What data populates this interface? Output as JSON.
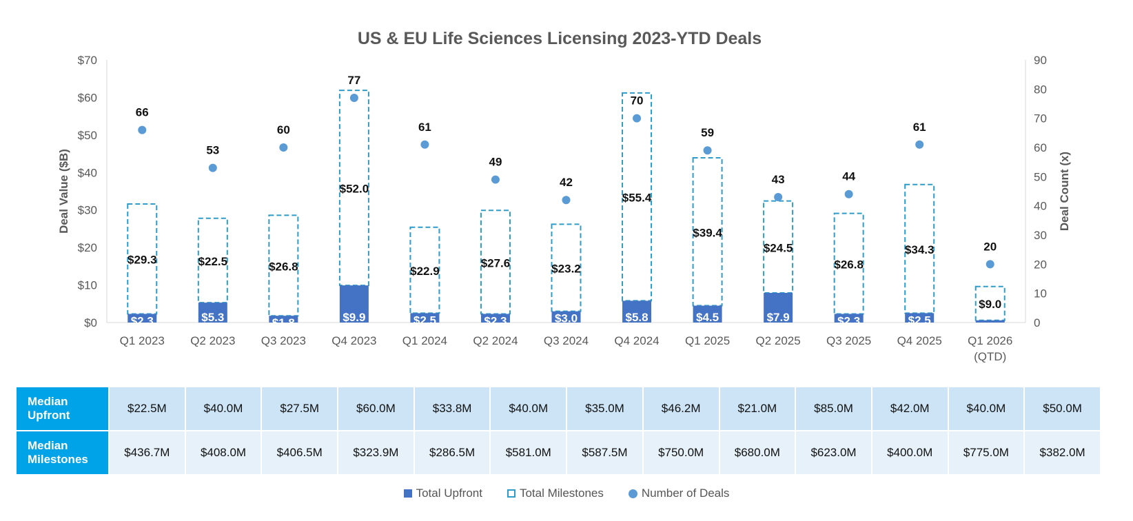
{
  "chart_data": {
    "type": "bar",
    "title": "US & EU Life Sciences Licensing 2023-YTD Deals",
    "ylabel": "Deal Value ($B)",
    "y2label": "Deal Count (x)",
    "ylim": [
      0,
      70
    ],
    "y2lim": [
      0,
      90
    ],
    "yticks": [
      "$0",
      "$10",
      "$20",
      "$30",
      "$40",
      "$50",
      "$60",
      "$70"
    ],
    "y2ticks": [
      "0",
      "10",
      "20",
      "30",
      "40",
      "50",
      "60",
      "70",
      "80",
      "90"
    ],
    "categories": [
      "Q1 2023",
      "Q2 2023",
      "Q3 2023",
      "Q4 2023",
      "Q1 2024",
      "Q2 2024",
      "Q3 2024",
      "Q4 2024",
      "Q1 2025",
      "Q2 2025",
      "Q3 2025",
      "Q4 2025",
      "Q1 2026 (QTD)"
    ],
    "series": [
      {
        "name": "Total Upfront",
        "type": "bar",
        "axis": "left",
        "values": [
          2.3,
          5.3,
          1.8,
          9.9,
          2.5,
          2.3,
          3.0,
          5.8,
          4.5,
          7.9,
          2.3,
          2.5,
          0.6
        ],
        "labels": [
          "$2.3",
          "$5.3",
          "$1.8",
          "$9.9",
          "$2.5",
          "$2.3",
          "$3.0",
          "$5.8",
          "$4.5",
          "$7.9",
          "$2.3",
          "$2.5",
          ""
        ]
      },
      {
        "name": "Total Milestones",
        "type": "stacked-bar-dashed",
        "axis": "left",
        "values": [
          29.3,
          22.5,
          26.8,
          52.0,
          22.9,
          27.6,
          23.2,
          55.4,
          39.4,
          24.5,
          26.8,
          34.3,
          9.0
        ],
        "labels": [
          "$29.3",
          "$22.5",
          "$26.8",
          "$52.0",
          "$22.9",
          "$27.6",
          "$23.2",
          "$55.4",
          "$39.4",
          "$24.5",
          "$26.8",
          "$34.3",
          "$9.0"
        ]
      },
      {
        "name": "Number of Deals",
        "type": "scatter",
        "axis": "right",
        "values": [
          66,
          53,
          60,
          77,
          61,
          49,
          42,
          70,
          59,
          43,
          44,
          61,
          20
        ]
      }
    ],
    "legend_position": "bottom",
    "grid": false,
    "colors": {
      "upfront": "#4472C4",
      "milestones": "#2E9BC8",
      "deals": "#5B9BD5",
      "table_header": "#00A2E8",
      "row1": "#CCE4F6",
      "row2": "#E6F1FA"
    }
  },
  "table": {
    "rows": [
      {
        "label": "Median Upfront",
        "values": [
          "$22.5M",
          "$40.0M",
          "$27.5M",
          "$60.0M",
          "$33.8M",
          "$40.0M",
          "$35.0M",
          "$46.2M",
          "$21.0M",
          "$85.0M",
          "$42.0M",
          "$40.0M",
          "$50.0M"
        ]
      },
      {
        "label": "Median Milestones",
        "values": [
          "$436.7M",
          "$408.0M",
          "$406.5M",
          "$323.9M",
          "$286.5M",
          "$581.0M",
          "$587.5M",
          "$750.0M",
          "$680.0M",
          "$623.0M",
          "$400.0M",
          "$775.0M",
          "$382.0M"
        ]
      }
    ]
  }
}
